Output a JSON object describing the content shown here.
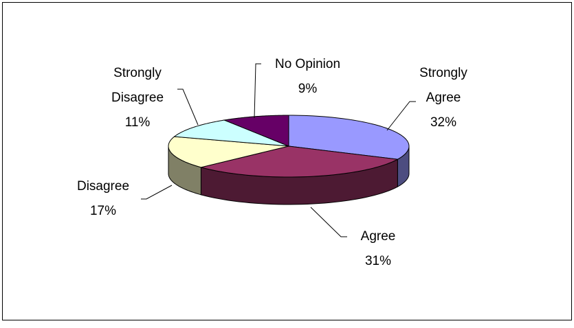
{
  "chart_data": {
    "type": "pie3d",
    "categories": [
      "Strongly Agree",
      "Agree",
      "Disagree",
      "Strongly Disagree",
      "No Opinion"
    ],
    "values": [
      32,
      31,
      17,
      11,
      9
    ],
    "value_labels": [
      "32%",
      "31%",
      "17%",
      "11%",
      "9%"
    ],
    "colors": [
      "#9999ff",
      "#993366",
      "#ffffcc",
      "#ccffff",
      "#660066"
    ]
  }
}
